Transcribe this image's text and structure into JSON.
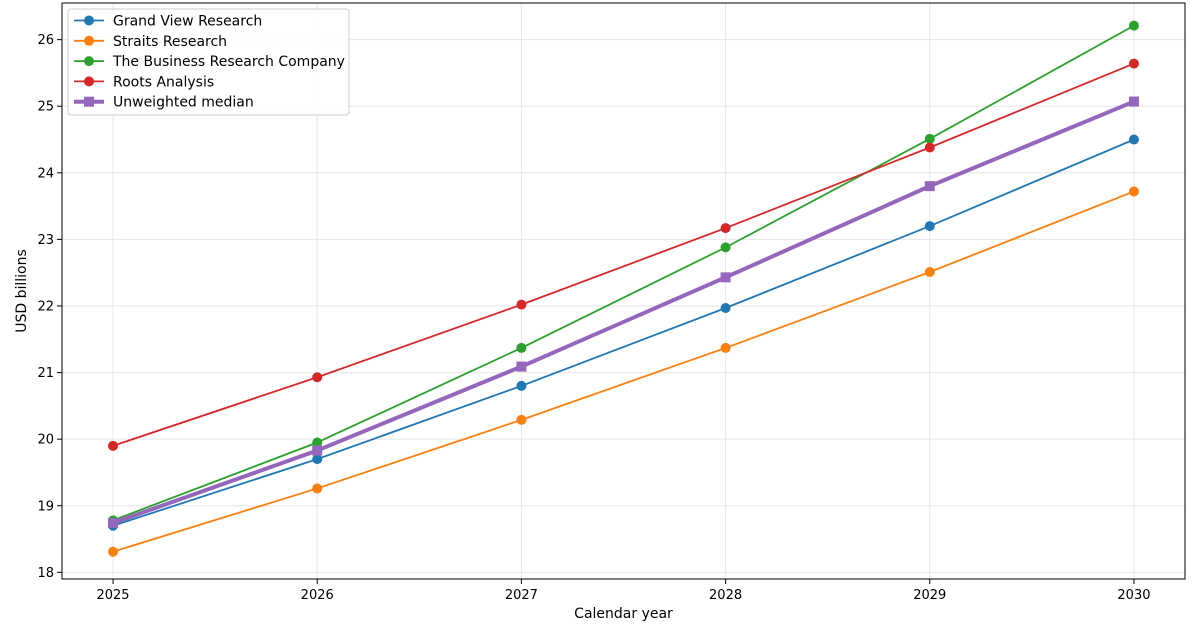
{
  "chart_data": {
    "type": "line",
    "xlabel": "Calendar year",
    "ylabel": "USD billions",
    "x": [
      2025,
      2026,
      2027,
      2028,
      2029,
      2030
    ],
    "x_tick_labels": [
      "2025",
      "2026",
      "2027",
      "2028",
      "2029",
      "2030"
    ],
    "ylim": [
      17.9,
      26.55
    ],
    "y_ticks": [
      18,
      19,
      20,
      21,
      22,
      23,
      24,
      25,
      26
    ],
    "grid": true,
    "legend_position": "top-left",
    "series": [
      {
        "name": "Grand View Research",
        "color": "#1f77b4",
        "marker": "circle",
        "emphasis": false,
        "values": [
          18.7,
          19.7,
          20.8,
          21.97,
          23.2,
          24.5
        ]
      },
      {
        "name": "Straits Research",
        "color": "#ff7f0e",
        "marker": "circle",
        "emphasis": false,
        "values": [
          18.31,
          19.26,
          20.29,
          21.37,
          22.51,
          23.72
        ]
      },
      {
        "name": "The Business Research Company",
        "color": "#2ca02c",
        "marker": "circle",
        "emphasis": false,
        "values": [
          18.78,
          19.95,
          21.37,
          22.88,
          24.51,
          26.21
        ]
      },
      {
        "name": "Roots Analysis",
        "color": "#d62728",
        "marker": "circle",
        "emphasis": false,
        "values": [
          19.9,
          20.93,
          22.02,
          23.17,
          24.38,
          25.64
        ]
      },
      {
        "name": "Unweighted median",
        "color": "#9467bd",
        "marker": "square",
        "emphasis": true,
        "values": [
          18.74,
          19.83,
          21.09,
          22.43,
          23.8,
          25.07
        ]
      }
    ]
  }
}
